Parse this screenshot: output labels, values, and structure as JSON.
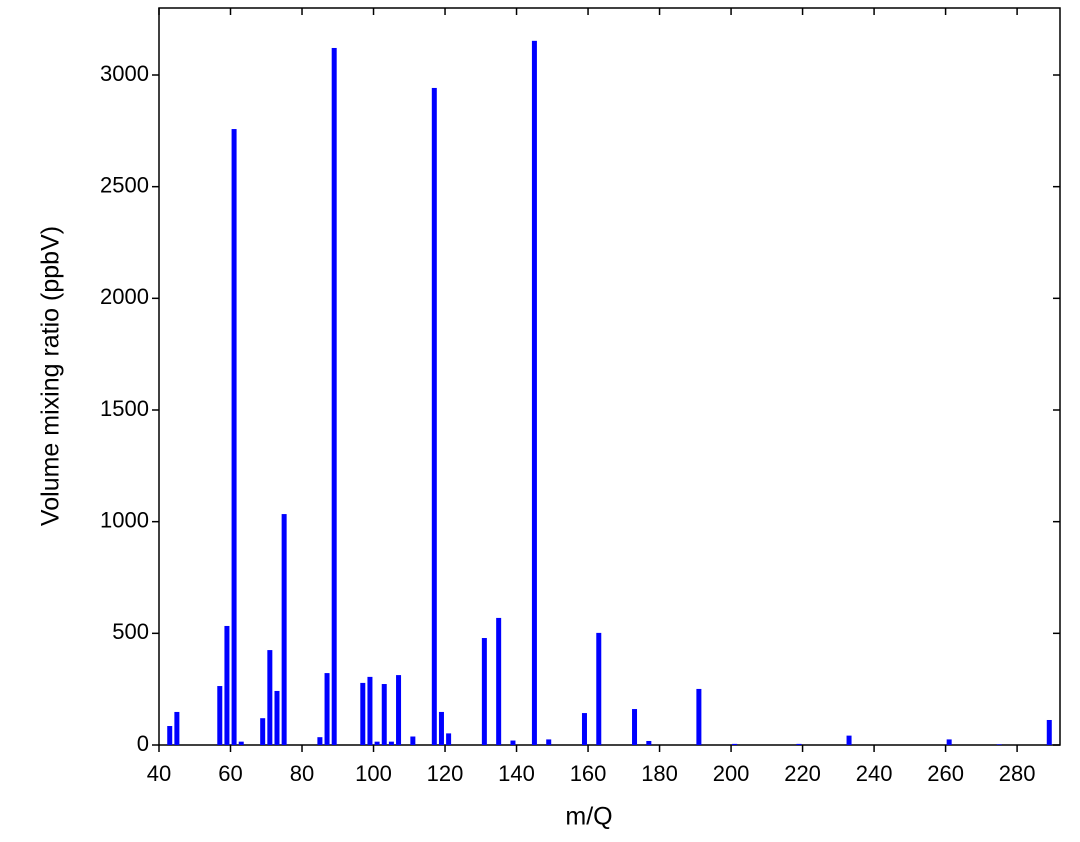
{
  "chart_data": {
    "type": "bar",
    "x_label": "m/Q",
    "y_label": "Volume mixing ratio (ppbV)",
    "x": [
      43,
      45,
      57,
      59,
      61,
      63,
      69,
      71,
      73,
      75,
      85,
      87,
      89,
      97,
      99,
      101,
      103,
      105,
      107,
      111,
      117,
      119,
      121,
      131,
      135,
      139,
      145,
      149,
      159,
      163,
      173,
      177,
      191,
      201,
      219,
      233,
      261,
      275,
      289
    ],
    "values": [
      85,
      148,
      264,
      533,
      2758,
      15,
      120,
      425,
      242,
      1034,
      35,
      322,
      3121,
      278,
      305,
      15,
      273,
      15,
      313,
      38,
      2942,
      148,
      52,
      479,
      569,
      20,
      3153,
      25,
      143,
      502,
      161,
      18,
      251,
      5,
      5,
      42,
      25,
      3,
      112
    ],
    "color": "#0000ff",
    "xlim": [
      40,
      292
    ],
    "ylim": [
      0,
      3300
    ],
    "xticks": [
      40,
      60,
      80,
      100,
      120,
      140,
      160,
      180,
      200,
      220,
      240,
      260,
      280
    ],
    "yticks": [
      0,
      500,
      1000,
      1500,
      2000,
      2500,
      3000
    ]
  }
}
